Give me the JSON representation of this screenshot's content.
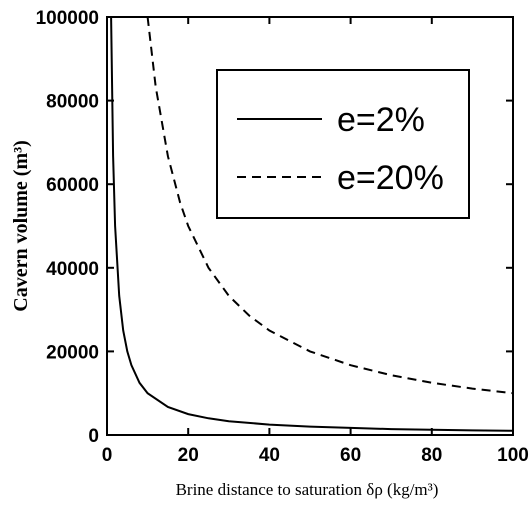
{
  "chart_data": {
    "type": "line",
    "title": "",
    "xlabel": "Brine distance to saturation δρ (kg/m³)",
    "ylabel": "Cavern volume (m³)",
    "xlim": [
      0,
      100
    ],
    "ylim": [
      0,
      100000
    ],
    "xticks": [
      "0",
      "20",
      "40",
      "60",
      "80",
      "100"
    ],
    "yticks": [
      "0",
      "20000",
      "40000",
      "60000",
      "80000",
      "100000"
    ],
    "grid": false,
    "legend_position": "top-right",
    "series": [
      {
        "name": "e=2%",
        "style": "solid",
        "x": [
          1,
          1.5,
          2,
          3,
          4,
          5,
          6,
          8,
          10,
          15,
          20,
          25,
          30,
          40,
          50,
          60,
          70,
          80,
          90,
          100
        ],
        "y": [
          100000,
          66700,
          50000,
          33300,
          25000,
          20000,
          16700,
          12500,
          10000,
          6700,
          5000,
          4000,
          3300,
          2500,
          2000,
          1700,
          1400,
          1250,
          1100,
          1000
        ]
      },
      {
        "name": "e=20%",
        "style": "dashed",
        "x": [
          10,
          12,
          15,
          18,
          20,
          25,
          30,
          35,
          40,
          50,
          60,
          70,
          80,
          90,
          100
        ],
        "y": [
          100000,
          83300,
          66700,
          55600,
          50000,
          40000,
          33300,
          28600,
          25000,
          20000,
          16700,
          14300,
          12500,
          11100,
          10000
        ]
      }
    ]
  }
}
